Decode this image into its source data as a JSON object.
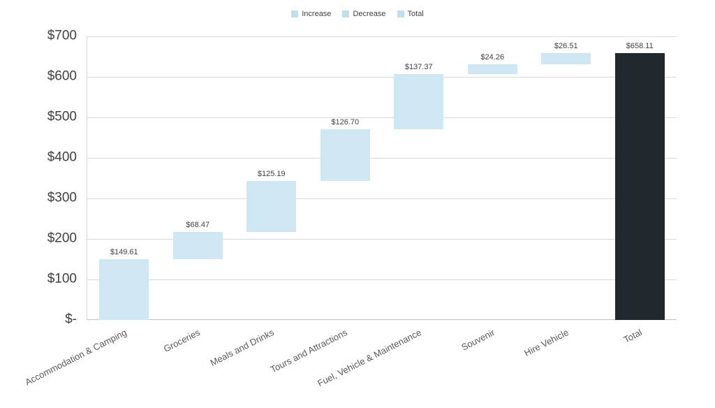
{
  "legend": {
    "items": [
      {
        "label": "Increase",
        "color": "#bfdfef"
      },
      {
        "label": "Decrease",
        "color": "#bfdfef"
      },
      {
        "label": "Total",
        "color": "#bfdfef"
      }
    ]
  },
  "y_axis": {
    "tick_labels": [
      "$700",
      "$600",
      "$500",
      "$400",
      "$300",
      "$200",
      "$100",
      "$-"
    ],
    "min": 0,
    "max": 700,
    "step": 100
  },
  "chart_data": {
    "type": "bar",
    "subtype": "waterfall",
    "title": "",
    "xlabel": "",
    "ylabel": "",
    "ylim": [
      0,
      700
    ],
    "grid": true,
    "legend_position": "top-center",
    "legend_entries": [
      "Increase",
      "Decrease",
      "Total"
    ],
    "categories": [
      "Accommodation & Camping",
      "Groceries",
      "Meals and Drinks",
      "Tours and Attractions",
      "Fuel, Vehicle & Maintenance",
      "Souvenir",
      "Hire Vehicle",
      "Total"
    ],
    "values": [
      149.61,
      68.47,
      125.19,
      126.7,
      137.37,
      24.26,
      26.51,
      658.11
    ],
    "bar_kinds": [
      "increase",
      "increase",
      "increase",
      "increase",
      "increase",
      "increase",
      "increase",
      "total"
    ],
    "data_labels": [
      "$149.61",
      "$68.47",
      "$125.19",
      "$126.70",
      "$137.37",
      "$24.26",
      "$26.51",
      "$658.11"
    ],
    "cumulative_ends": [
      149.61,
      218.08,
      343.27,
      469.97,
      607.34,
      631.6,
      658.11,
      658.11
    ],
    "colors": {
      "increase": "#cfe7f3",
      "decrease": "#cfe7f3",
      "total": "#22292e"
    }
  }
}
